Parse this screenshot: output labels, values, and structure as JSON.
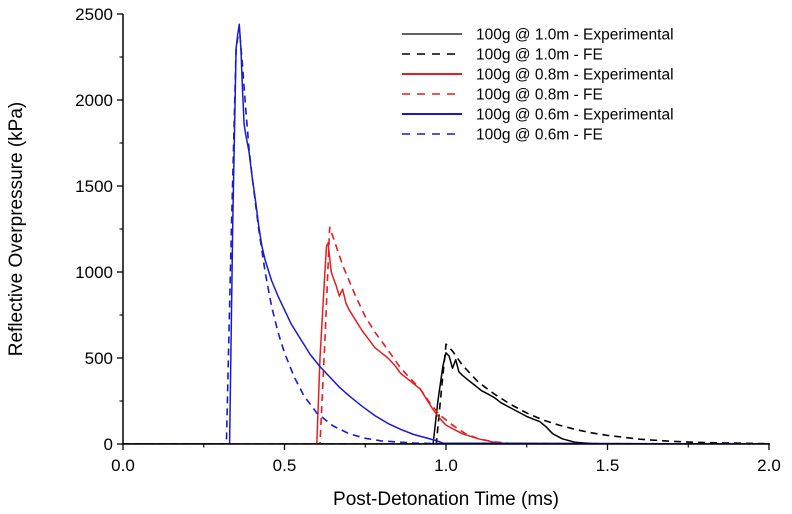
{
  "chart_data": {
    "type": "line",
    "title": "",
    "xlabel": "Post-Detonation Time (ms)",
    "ylabel": "Reflective Overpressure (kPa)",
    "xlim": [
      0.0,
      2.0
    ],
    "ylim": [
      0,
      2500
    ],
    "xticks": [
      "0.0",
      "0.5",
      "1.0",
      "1.5",
      "2.0"
    ],
    "yticks": [
      "0",
      "500",
      "1000",
      "1500",
      "2000",
      "2500"
    ],
    "legend_position": "top-right",
    "series": [
      {
        "name": "100g @ 1.0m - Experimental",
        "color": "#000000",
        "dash": "solid",
        "x": [
          0,
          0.96,
          0.975,
          0.99,
          1.0,
          1.01,
          1.02,
          1.03,
          1.04,
          1.05,
          1.07,
          1.09,
          1.11,
          1.13,
          1.15,
          1.17,
          1.19,
          1.21,
          1.23,
          1.25,
          1.27,
          1.29,
          1.31,
          1.33,
          1.36,
          1.4,
          1.45,
          1.5,
          2.0
        ],
        "y": [
          0,
          0,
          250,
          450,
          530,
          510,
          440,
          490,
          420,
          400,
          370,
          340,
          310,
          290,
          270,
          240,
          220,
          200,
          180,
          160,
          145,
          130,
          100,
          60,
          30,
          10,
          3,
          0,
          0
        ]
      },
      {
        "name": "100g @ 1.0m - FE",
        "color": "#000000",
        "dash": "dashed",
        "x": [
          0,
          0.97,
          0.985,
          1.0,
          1.02,
          1.05,
          1.1,
          1.15,
          1.2,
          1.25,
          1.3,
          1.35,
          1.4,
          1.45,
          1.5,
          1.6,
          1.7,
          1.8,
          2.0
        ],
        "y": [
          0,
          0,
          300,
          580,
          540,
          460,
          360,
          290,
          230,
          180,
          140,
          110,
          85,
          65,
          50,
          28,
          15,
          8,
          2
        ]
      },
      {
        "name": "100g @ 0.8m - Experimental",
        "color": "#e02020",
        "dash": "solid",
        "x": [
          0,
          0.6,
          0.61,
          0.625,
          0.63,
          0.635,
          0.64,
          0.645,
          0.65,
          0.66,
          0.67,
          0.68,
          0.69,
          0.7,
          0.72,
          0.74,
          0.76,
          0.78,
          0.8,
          0.82,
          0.84,
          0.86,
          0.88,
          0.9,
          0.92,
          0.94,
          0.96,
          0.98,
          1.0,
          1.05,
          1.1,
          1.15,
          1.2,
          2.0
        ],
        "y": [
          0,
          0,
          500,
          1000,
          1150,
          1170,
          1080,
          1000,
          970,
          920,
          860,
          900,
          820,
          780,
          720,
          660,
          610,
          560,
          530,
          500,
          460,
          410,
          380,
          350,
          320,
          260,
          200,
          150,
          110,
          60,
          30,
          10,
          0,
          0
        ]
      },
      {
        "name": "100g @ 0.8m - FE",
        "color": "#e02020",
        "dash": "dashed",
        "x": [
          0,
          0.61,
          0.625,
          0.64,
          0.66,
          0.68,
          0.7,
          0.72,
          0.75,
          0.78,
          0.8,
          0.83,
          0.86,
          0.89,
          0.92,
          0.95,
          0.98,
          1.02,
          1.06,
          1.1,
          1.15,
          1.2,
          2.0
        ],
        "y": [
          0,
          0,
          600,
          1260,
          1150,
          1040,
          950,
          860,
          740,
          650,
          600,
          520,
          440,
          380,
          320,
          240,
          170,
          110,
          60,
          30,
          12,
          3,
          0
        ]
      },
      {
        "name": "100g @ 0.6m - Experimental",
        "color": "#1a1acc",
        "dash": "solid",
        "x": [
          0,
          0.33,
          0.34,
          0.35,
          0.355,
          0.36,
          0.365,
          0.37,
          0.375,
          0.38,
          0.39,
          0.4,
          0.41,
          0.42,
          0.43,
          0.44,
          0.46,
          0.48,
          0.5,
          0.52,
          0.55,
          0.58,
          0.61,
          0.64,
          0.67,
          0.7,
          0.74,
          0.78,
          0.82,
          0.86,
          0.9,
          0.94,
          0.97,
          0.99,
          2.0
        ],
        "y": [
          0,
          0,
          1300,
          2300,
          2380,
          2440,
          2300,
          2060,
          1860,
          1800,
          1700,
          1550,
          1420,
          1270,
          1150,
          1070,
          950,
          860,
          780,
          700,
          610,
          520,
          450,
          390,
          330,
          280,
          220,
          165,
          120,
          85,
          55,
          35,
          20,
          5,
          0
        ]
      },
      {
        "name": "100g @ 0.6m - FE",
        "color": "#1a1acc",
        "dash": "dashed",
        "x": [
          0,
          0.32,
          0.335,
          0.35,
          0.36,
          0.37,
          0.38,
          0.39,
          0.4,
          0.42,
          0.44,
          0.46,
          0.48,
          0.5,
          0.53,
          0.56,
          0.6,
          0.65,
          0.7,
          0.75,
          0.8,
          0.9,
          1.0,
          2.0
        ],
        "y": [
          0,
          0,
          1200,
          2300,
          2420,
          2200,
          1950,
          1720,
          1550,
          1250,
          1000,
          800,
          650,
          530,
          390,
          280,
          180,
          105,
          60,
          33,
          18,
          6,
          1,
          0
        ]
      }
    ]
  }
}
